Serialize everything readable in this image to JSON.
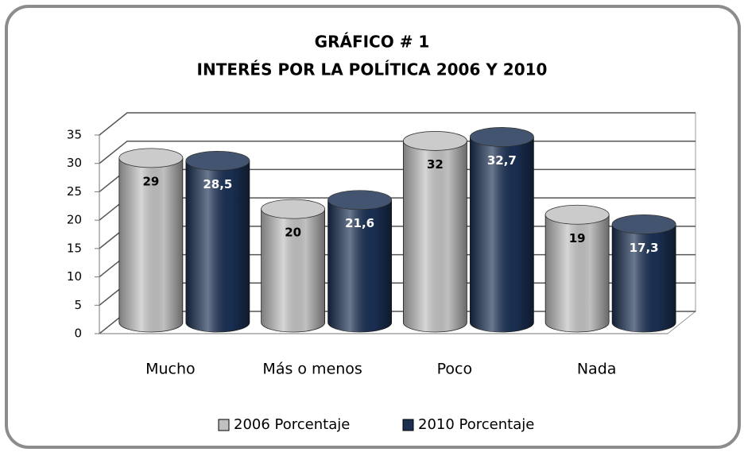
{
  "chart_data": {
    "type": "bar3d",
    "title": "GRÁFICO # 1",
    "subtitle": "INTERÉS POR LA POLÍTICA 2006 Y 2010",
    "categories": [
      "Mucho",
      "Más o menos",
      "Poco",
      "Nada"
    ],
    "series": [
      {
        "name": "2006 Porcentaje",
        "color": "#c0c0c0",
        "values": [
          29,
          20,
          32,
          19
        ]
      },
      {
        "name": "2010 Porcentaje",
        "color": "#1a2f52",
        "values": [
          28.5,
          21.6,
          32.7,
          17.3
        ],
        "value_labels": [
          "28,5",
          "21,6",
          "32,7",
          "17,3"
        ]
      }
    ],
    "ylim": [
      0,
      35
    ],
    "yticks": [
      0,
      5,
      10,
      15,
      20,
      25,
      30,
      35
    ],
    "grid": true,
    "legend": "bottom"
  }
}
